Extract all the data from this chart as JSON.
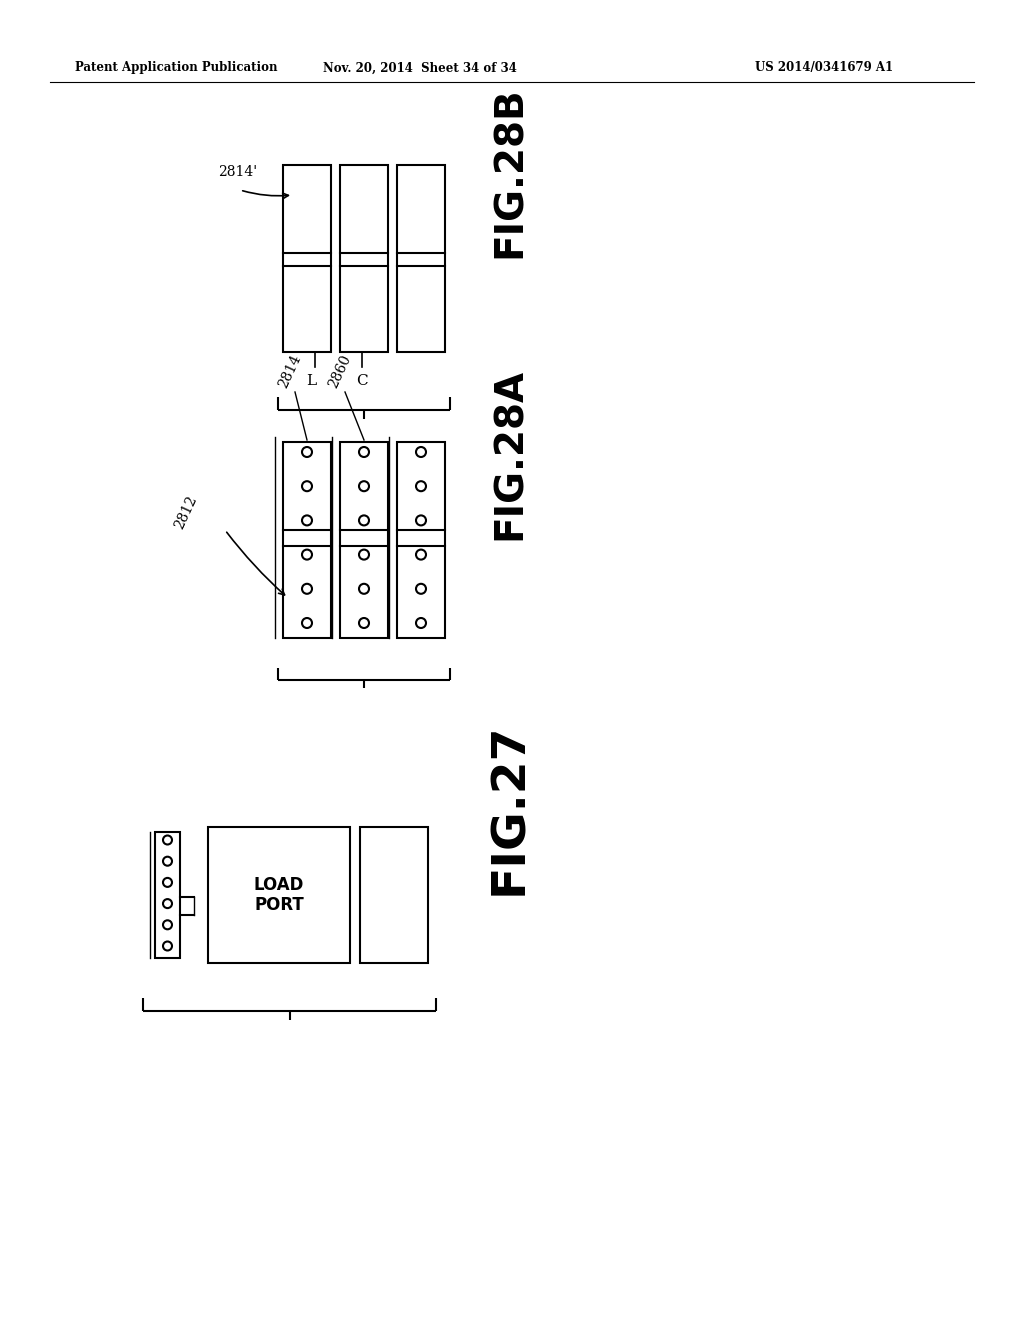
{
  "header_left": "Patent Application Publication",
  "header_middle": "Nov. 20, 2014  Sheet 34 of 34",
  "header_right": "US 2014/0341679 A1",
  "bg_color": "#ffffff",
  "line_color": "#000000",
  "fig27_label": "FIG.27",
  "fig28a_label": "FIG.28A",
  "fig28b_label": "FIG.28B",
  "label_2812": "2812",
  "label_2814": "2814",
  "label_2860": "2860",
  "label_2814p": "2814'",
  "label_L": "L",
  "label_C": "C",
  "load_port_text": "LOAD\nPORT"
}
